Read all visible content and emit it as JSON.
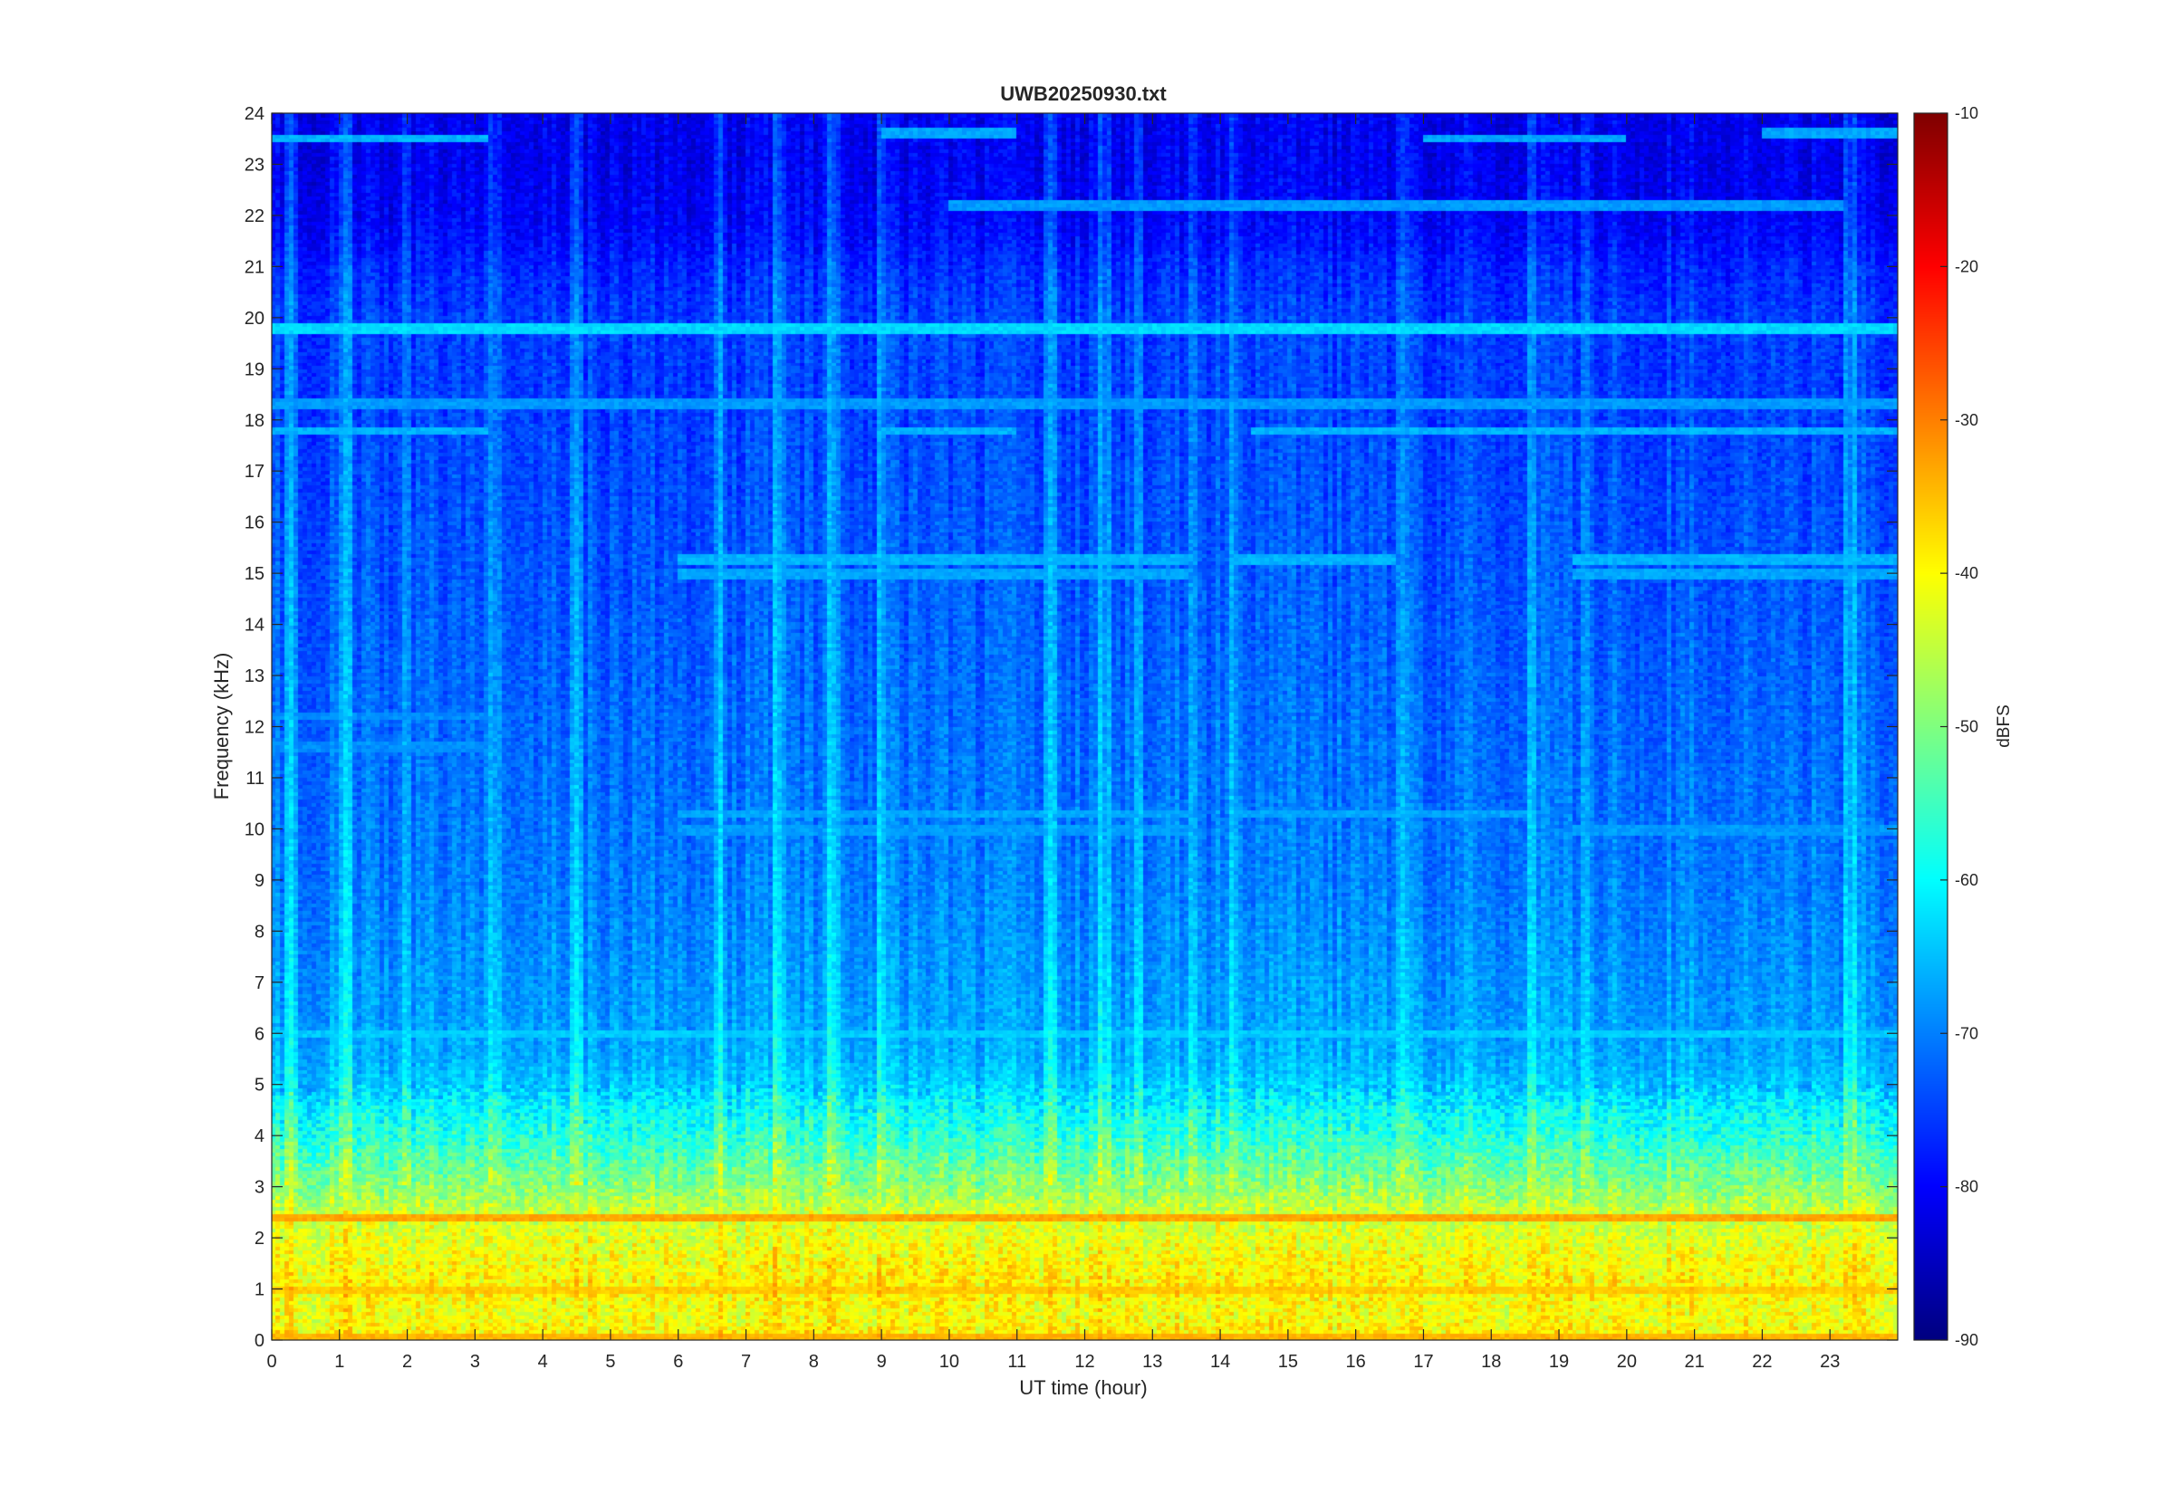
{
  "chart_data": {
    "type": "heatmap",
    "title": "UWB20250930.txt",
    "xlabel": "UT time (hour)",
    "ylabel": "Frequency (kHz)",
    "xlim": [
      0,
      24
    ],
    "ylim": [
      0,
      24
    ],
    "x_ticks": [
      0,
      1,
      2,
      3,
      4,
      5,
      6,
      7,
      8,
      9,
      10,
      11,
      12,
      13,
      14,
      15,
      16,
      17,
      18,
      19,
      20,
      21,
      22,
      23
    ],
    "y_ticks": [
      0,
      1,
      2,
      3,
      4,
      5,
      6,
      7,
      8,
      9,
      10,
      11,
      12,
      13,
      14,
      15,
      16,
      17,
      18,
      19,
      20,
      21,
      22,
      23,
      24
    ],
    "colorbar": {
      "label": "dBFS",
      "range": [
        -90,
        -10
      ],
      "ticks": [
        -10,
        -20,
        -30,
        -40,
        -50,
        -60,
        -70,
        -80,
        -90
      ],
      "colormap": "jet"
    },
    "background_profile_khz_dbfs": [
      [
        0,
        -38
      ],
      [
        0.5,
        -41
      ],
      [
        1,
        -39
      ],
      [
        1.5,
        -40
      ],
      [
        2,
        -42
      ],
      [
        2.5,
        -44
      ],
      [
        3,
        -49
      ],
      [
        3.5,
        -53
      ],
      [
        4,
        -57
      ],
      [
        4.5,
        -60
      ],
      [
        5,
        -64
      ],
      [
        5.5,
        -66
      ],
      [
        6,
        -67
      ],
      [
        7,
        -68
      ],
      [
        8,
        -69
      ],
      [
        9,
        -70
      ],
      [
        10,
        -70.5
      ],
      [
        11,
        -71
      ],
      [
        12,
        -71.5
      ],
      [
        13,
        -72
      ],
      [
        14,
        -72.5
      ],
      [
        15,
        -73
      ],
      [
        16,
        -73.5
      ],
      [
        17,
        -74
      ],
      [
        18,
        -74.5
      ],
      [
        19,
        -75
      ],
      [
        20,
        -75
      ],
      [
        20.5,
        -76
      ],
      [
        21,
        -77
      ],
      [
        21.5,
        -79
      ],
      [
        22,
        -80
      ],
      [
        23,
        -81
      ],
      [
        24,
        -81
      ]
    ],
    "narrowband_lines": [
      {
        "freq_khz": 19.8,
        "level_dbfs": -63,
        "start_hour": 0,
        "end_hour": 24
      },
      {
        "freq_khz": 18.3,
        "level_dbfs": -68,
        "start_hour": 0,
        "end_hour": 24
      },
      {
        "freq_khz": 17.8,
        "level_dbfs": -66,
        "start_hour": 0,
        "end_hour": 3.2
      },
      {
        "freq_khz": 17.8,
        "level_dbfs": -66,
        "start_hour": 9,
        "end_hour": 11
      },
      {
        "freq_khz": 17.8,
        "level_dbfs": -66,
        "start_hour": 14.5,
        "end_hour": 24
      },
      {
        "freq_khz": 23.5,
        "level_dbfs": -66,
        "start_hour": 0,
        "end_hour": 3.2
      },
      {
        "freq_khz": 23.6,
        "level_dbfs": -67,
        "start_hour": 9,
        "end_hour": 11
      },
      {
        "freq_khz": 23.5,
        "level_dbfs": -67,
        "start_hour": 17,
        "end_hour": 20
      },
      {
        "freq_khz": 23.6,
        "level_dbfs": -67,
        "start_hour": 22,
        "end_hour": 24
      },
      {
        "freq_khz": 22.2,
        "level_dbfs": -68,
        "start_hour": 10,
        "end_hour": 23.2
      },
      {
        "freq_khz": 15.3,
        "level_dbfs": -66,
        "start_hour": 6,
        "end_hour": 13.5
      },
      {
        "freq_khz": 15.3,
        "level_dbfs": -66,
        "start_hour": 14.2,
        "end_hour": 16.6
      },
      {
        "freq_khz": 15.3,
        "level_dbfs": -66,
        "start_hour": 19.2,
        "end_hour": 24
      },
      {
        "freq_khz": 15.0,
        "level_dbfs": -67,
        "start_hour": 6,
        "end_hour": 13.5
      },
      {
        "freq_khz": 15.0,
        "level_dbfs": -67,
        "start_hour": 19.2,
        "end_hour": 24
      },
      {
        "freq_khz": 10.3,
        "level_dbfs": -67,
        "start_hour": 6,
        "end_hour": 13.5
      },
      {
        "freq_khz": 10.3,
        "level_dbfs": -67,
        "start_hour": 14.2,
        "end_hour": 18.6
      },
      {
        "freq_khz": 10.0,
        "level_dbfs": -68,
        "start_hour": 6,
        "end_hour": 13.5
      },
      {
        "freq_khz": 10.0,
        "level_dbfs": -68,
        "start_hour": 19.2,
        "end_hour": 24
      },
      {
        "freq_khz": 12.2,
        "level_dbfs": -69,
        "start_hour": 0,
        "end_hour": 3.2
      },
      {
        "freq_khz": 11.6,
        "level_dbfs": -69,
        "start_hour": 0,
        "end_hour": 3.2
      },
      {
        "freq_khz": 6.0,
        "level_dbfs": -64,
        "start_hour": 0,
        "end_hour": 3.2
      },
      {
        "freq_khz": 6.0,
        "level_dbfs": -64,
        "start_hour": 3.2,
        "end_hour": 24
      },
      {
        "freq_khz": 2.4,
        "level_dbfs": -33,
        "start_hour": 0,
        "end_hour": 24
      },
      {
        "freq_khz": 1.0,
        "level_dbfs": -36,
        "start_hour": 0,
        "end_hour": 24
      },
      {
        "freq_khz": 0.05,
        "level_dbfs": -34,
        "start_hour": 0,
        "end_hour": 24
      }
    ],
    "vertical_transients_hour": [
      0.3,
      1.1,
      2.0,
      3.3,
      4.5,
      6.6,
      7.5,
      8.3,
      9.0,
      11.5,
      12.3,
      12.8,
      13.6,
      14.2,
      16.7,
      18.6,
      19.4,
      23.3
    ]
  }
}
